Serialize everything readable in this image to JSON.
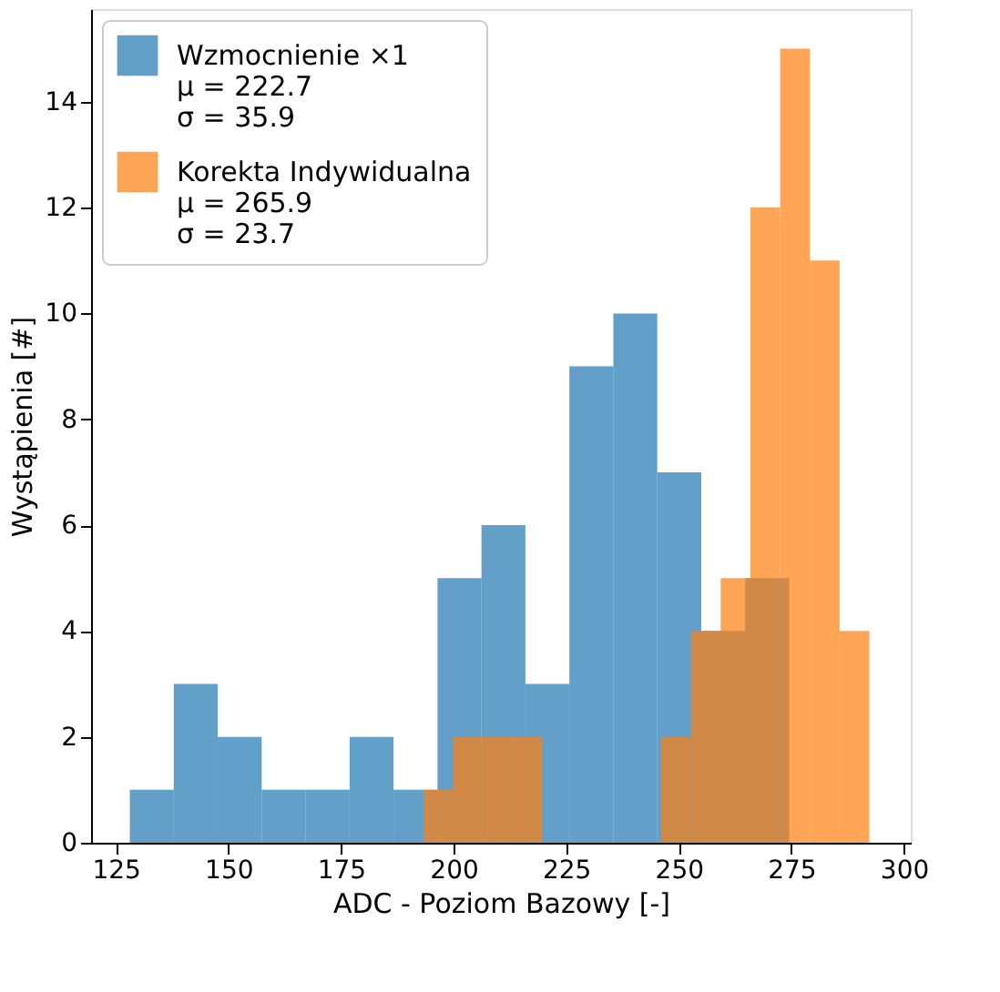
{
  "chart_data": {
    "type": "histogram",
    "xlabel": "ADC - Poziom Bazowy [-]",
    "ylabel": "Wystąpienia [#]",
    "bins": [
      128.1,
      137.86,
      147.62,
      157.38,
      167.14,
      176.9,
      186.66,
      196.42,
      206.18,
      215.94,
      225.7,
      235.46,
      245.22,
      254.98,
      264.74,
      274.5
    ],
    "series": [
      {
        "name": "Wzmocnienie ×1\nμ = 222.7\nσ = 35.9",
        "color": "#1f77b4",
        "values": [
          1,
          3,
          2,
          1,
          1,
          2,
          1,
          5,
          6,
          3,
          9,
          10,
          7,
          4,
          5
        ]
      },
      {
        "name": "Korekta Indywidualna\nμ = 265.9\nσ = 23.7",
        "color": "#ff7f0e",
        "bins": [
          193.3,
          199.9,
          206.5,
          213.1,
          219.7,
          226.3,
          232.9,
          239.5,
          246.1,
          252.7,
          259.3,
          265.9,
          272.5,
          279.1,
          285.7,
          292.3
        ],
        "values": [
          1,
          2,
          2,
          2,
          0,
          0,
          0,
          0,
          2,
          4,
          5,
          12,
          15,
          11,
          4
        ]
      }
    ],
    "xlim": [
      119.5,
      301.5
    ],
    "xticks": [
      125,
      150,
      175,
      200,
      225,
      250,
      275,
      300
    ],
    "ylim": [
      0,
      15.75
    ],
    "yticks": [
      0,
      2,
      4,
      6,
      8,
      10,
      12,
      14
    ],
    "grid": false,
    "legend": "top left"
  }
}
